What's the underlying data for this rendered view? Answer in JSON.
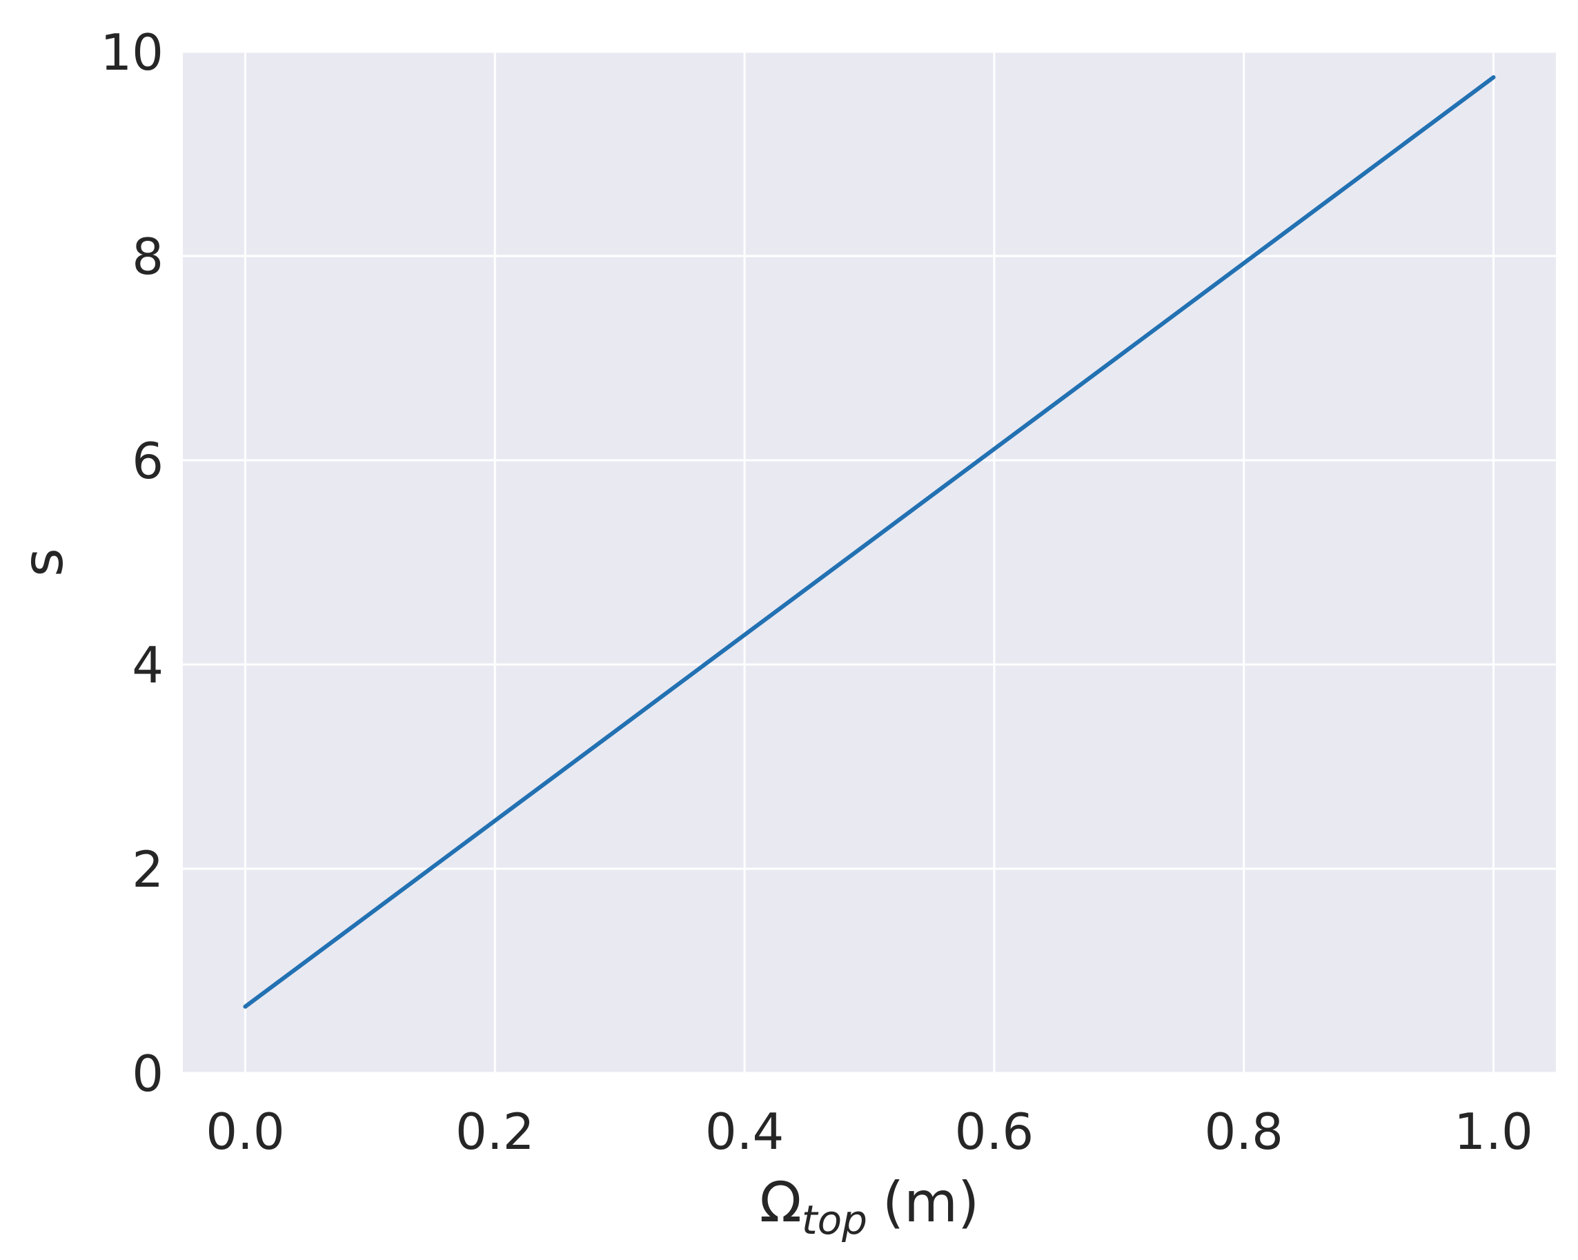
{
  "chart_data": {
    "type": "line",
    "title": "",
    "xlabel": {
      "symbol": "Ω",
      "subscript": "top",
      "unit": "(m)"
    },
    "ylabel": "s",
    "xlim": [
      -0.05,
      1.05
    ],
    "ylim": [
      0,
      10
    ],
    "x_ticks": [
      0.0,
      0.2,
      0.4,
      0.6,
      0.8,
      1.0
    ],
    "x_tick_labels": [
      "0.0",
      "0.2",
      "0.4",
      "0.6",
      "0.8",
      "1.0"
    ],
    "y_ticks": [
      0,
      2,
      4,
      6,
      8,
      10
    ],
    "y_tick_labels": [
      "0",
      "2",
      "4",
      "6",
      "8",
      "10"
    ],
    "grid": true,
    "series": [
      {
        "color": "#2271b2",
        "x": [
          0.0,
          1.0
        ],
        "y": [
          0.65,
          9.75
        ]
      }
    ]
  },
  "colors": {
    "plot_background": "#e9e9f2",
    "grid": "#ffffff",
    "text": "#262626"
  }
}
